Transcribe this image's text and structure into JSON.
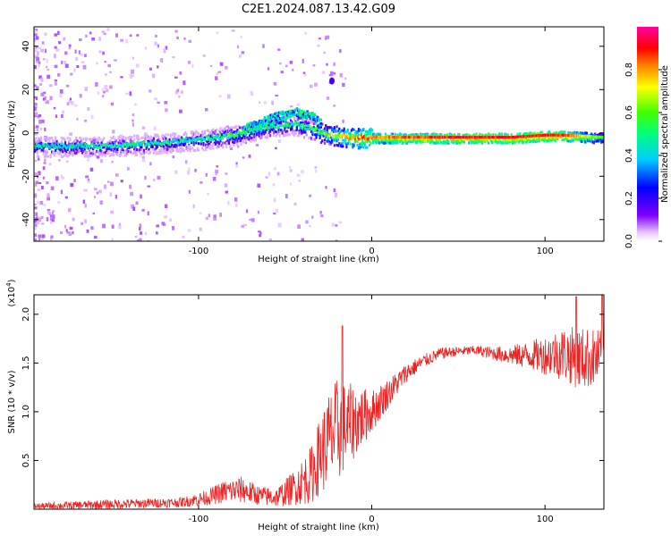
{
  "figure_title": "C2E1.2024.087.13.42.G09",
  "colors": {
    "snr_line": "#ee2222",
    "axis": "#000000",
    "background": "#ffffff"
  },
  "chart_data": [
    {
      "type": "heatmap",
      "title": "C2E1.2024.087.13.42.G09",
      "xlabel": "Height of straight line (km)",
      "ylabel": "Frequency (Hz)",
      "xlim": [
        -195,
        134
      ],
      "ylim": [
        -50,
        49
      ],
      "x_ticks": [
        -100,
        0,
        100
      ],
      "y_ticks": [
        -40,
        -20,
        0,
        20,
        40
      ],
      "colorbar": {
        "label": "Normalized spectral amplitude",
        "range": [
          0.0,
          1.0
        ],
        "ticks": [
          0.0,
          0.2,
          0.4,
          0.6,
          0.8
        ],
        "colormap": "rainbow (white → violet → blue → cyan → green → yellow → red → magenta)"
      },
      "main_trace": {
        "description_points_height_km": [
          -195,
          -160,
          -130,
          -100,
          -80,
          -60,
          -45,
          -35,
          -28,
          -20,
          -10,
          0,
          20,
          50,
          80,
          100,
          110,
          134
        ],
        "frequency_hz": [
          -6,
          -6,
          -5,
          -3,
          -1,
          3,
          4,
          2,
          0,
          -1,
          -2,
          -2,
          -2,
          -2,
          -2,
          -1,
          -1,
          -2
        ],
        "amplitude": [
          0.45,
          0.45,
          0.45,
          0.45,
          0.5,
          0.5,
          0.45,
          0.55,
          0.6,
          0.7,
          0.8,
          0.85,
          0.9,
          0.95,
          0.95,
          0.95,
          0.95,
          0.6
        ]
      },
      "secondary_trace": {
        "height_km": [
          -75,
          -65,
          -55,
          -45,
          -35,
          -30
        ],
        "frequency_hz": [
          2,
          5,
          8,
          10,
          8,
          5
        ]
      },
      "isolated_blob": {
        "height_km": -23,
        "frequency_hz": 24
      }
    },
    {
      "type": "line",
      "xlabel": "Height of straight line (km)",
      "ylabel": "SNR (10 * v/v)",
      "y_multiplier": "(x10⁴)",
      "y_multiplier_base": "(x10",
      "y_multiplier_exp": "4",
      "y_multiplier_close": ")",
      "xlim": [
        -195,
        134
      ],
      "ylim": [
        0,
        2.2
      ],
      "x_ticks": [
        -100,
        0,
        100
      ],
      "y_ticks": [
        0.5,
        1.0,
        1.5,
        2.0
      ],
      "y_tick_labels": [
        "0.5",
        "1.0",
        "1.5",
        "2.0"
      ],
      "envelope": {
        "x": [
          -195,
          -150,
          -110,
          -95,
          -85,
          -75,
          -65,
          -55,
          -45,
          -35,
          -30,
          -25,
          -20,
          -15,
          -10,
          -5,
          0,
          10,
          20,
          30,
          40,
          50,
          60,
          70,
          80,
          90,
          100,
          110,
          120,
          134
        ],
        "mean": [
          0.03,
          0.05,
          0.07,
          0.12,
          0.18,
          0.2,
          0.14,
          0.12,
          0.22,
          0.35,
          0.55,
          0.7,
          0.8,
          0.85,
          0.9,
          0.95,
          1.0,
          1.2,
          1.4,
          1.52,
          1.6,
          1.62,
          1.63,
          1.6,
          1.58,
          1.58,
          1.58,
          1.6,
          1.55,
          1.55
        ],
        "spread": [
          0.03,
          0.05,
          0.05,
          0.08,
          0.12,
          0.14,
          0.1,
          0.1,
          0.18,
          0.3,
          0.4,
          0.5,
          0.55,
          0.45,
          0.38,
          0.3,
          0.22,
          0.15,
          0.1,
          0.07,
          0.06,
          0.05,
          0.05,
          0.07,
          0.1,
          0.14,
          0.2,
          0.28,
          0.32,
          0.3
        ]
      },
      "peaks": [
        {
          "x": -17,
          "y": 1.88
        },
        {
          "x": 118,
          "y": 2.18
        },
        {
          "x": 133,
          "y": 2.2
        }
      ]
    }
  ]
}
